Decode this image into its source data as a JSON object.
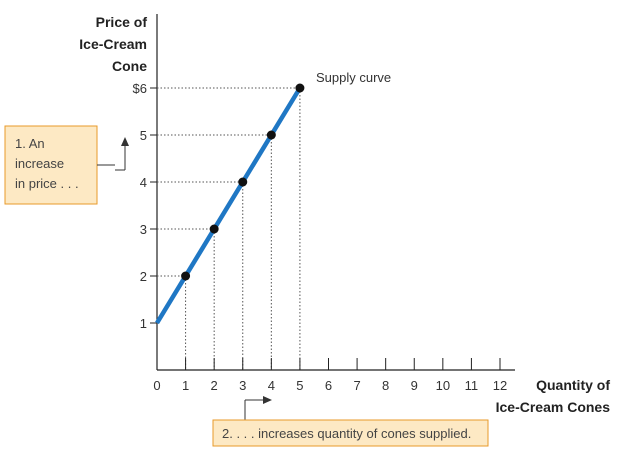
{
  "chart_data": {
    "type": "line",
    "ylabel_lines": [
      "Price of",
      "Ice-Cream",
      "Cone"
    ],
    "xlabel_lines": [
      "Quantity of",
      "Ice-Cream Cones"
    ],
    "x_ticks": [
      "0",
      "1",
      "2",
      "3",
      "4",
      "5",
      "6",
      "7",
      "8",
      "9",
      "10",
      "11",
      "12"
    ],
    "y_ticks": [
      {
        "value": 1,
        "label": "1"
      },
      {
        "value": 2,
        "label": "2"
      },
      {
        "value": 3,
        "label": "3"
      },
      {
        "value": 4,
        "label": "4"
      },
      {
        "value": 5,
        "label": "5"
      },
      {
        "value": 6,
        "label": "$6"
      }
    ],
    "xlim": [
      0,
      12
    ],
    "ylim": [
      0,
      6
    ],
    "series": [
      {
        "name": "Supply curve",
        "color": "#1f77c4",
        "line": [
          {
            "x": 0,
            "y": 1
          },
          {
            "x": 5,
            "y": 6
          }
        ],
        "points": [
          {
            "x": 1,
            "y": 2
          },
          {
            "x": 2,
            "y": 3
          },
          {
            "x": 3,
            "y": 4
          },
          {
            "x": 4,
            "y": 5
          },
          {
            "x": 5,
            "y": 6
          }
        ]
      }
    ],
    "curve_label": "Supply curve",
    "callout_price": [
      "1. An",
      "increase",
      "in price . . ."
    ],
    "callout_quantity": "2. . . . increases quantity of cones supplied.",
    "callout_fill": "#fde9c4",
    "callout_border": "#e89a2a"
  }
}
